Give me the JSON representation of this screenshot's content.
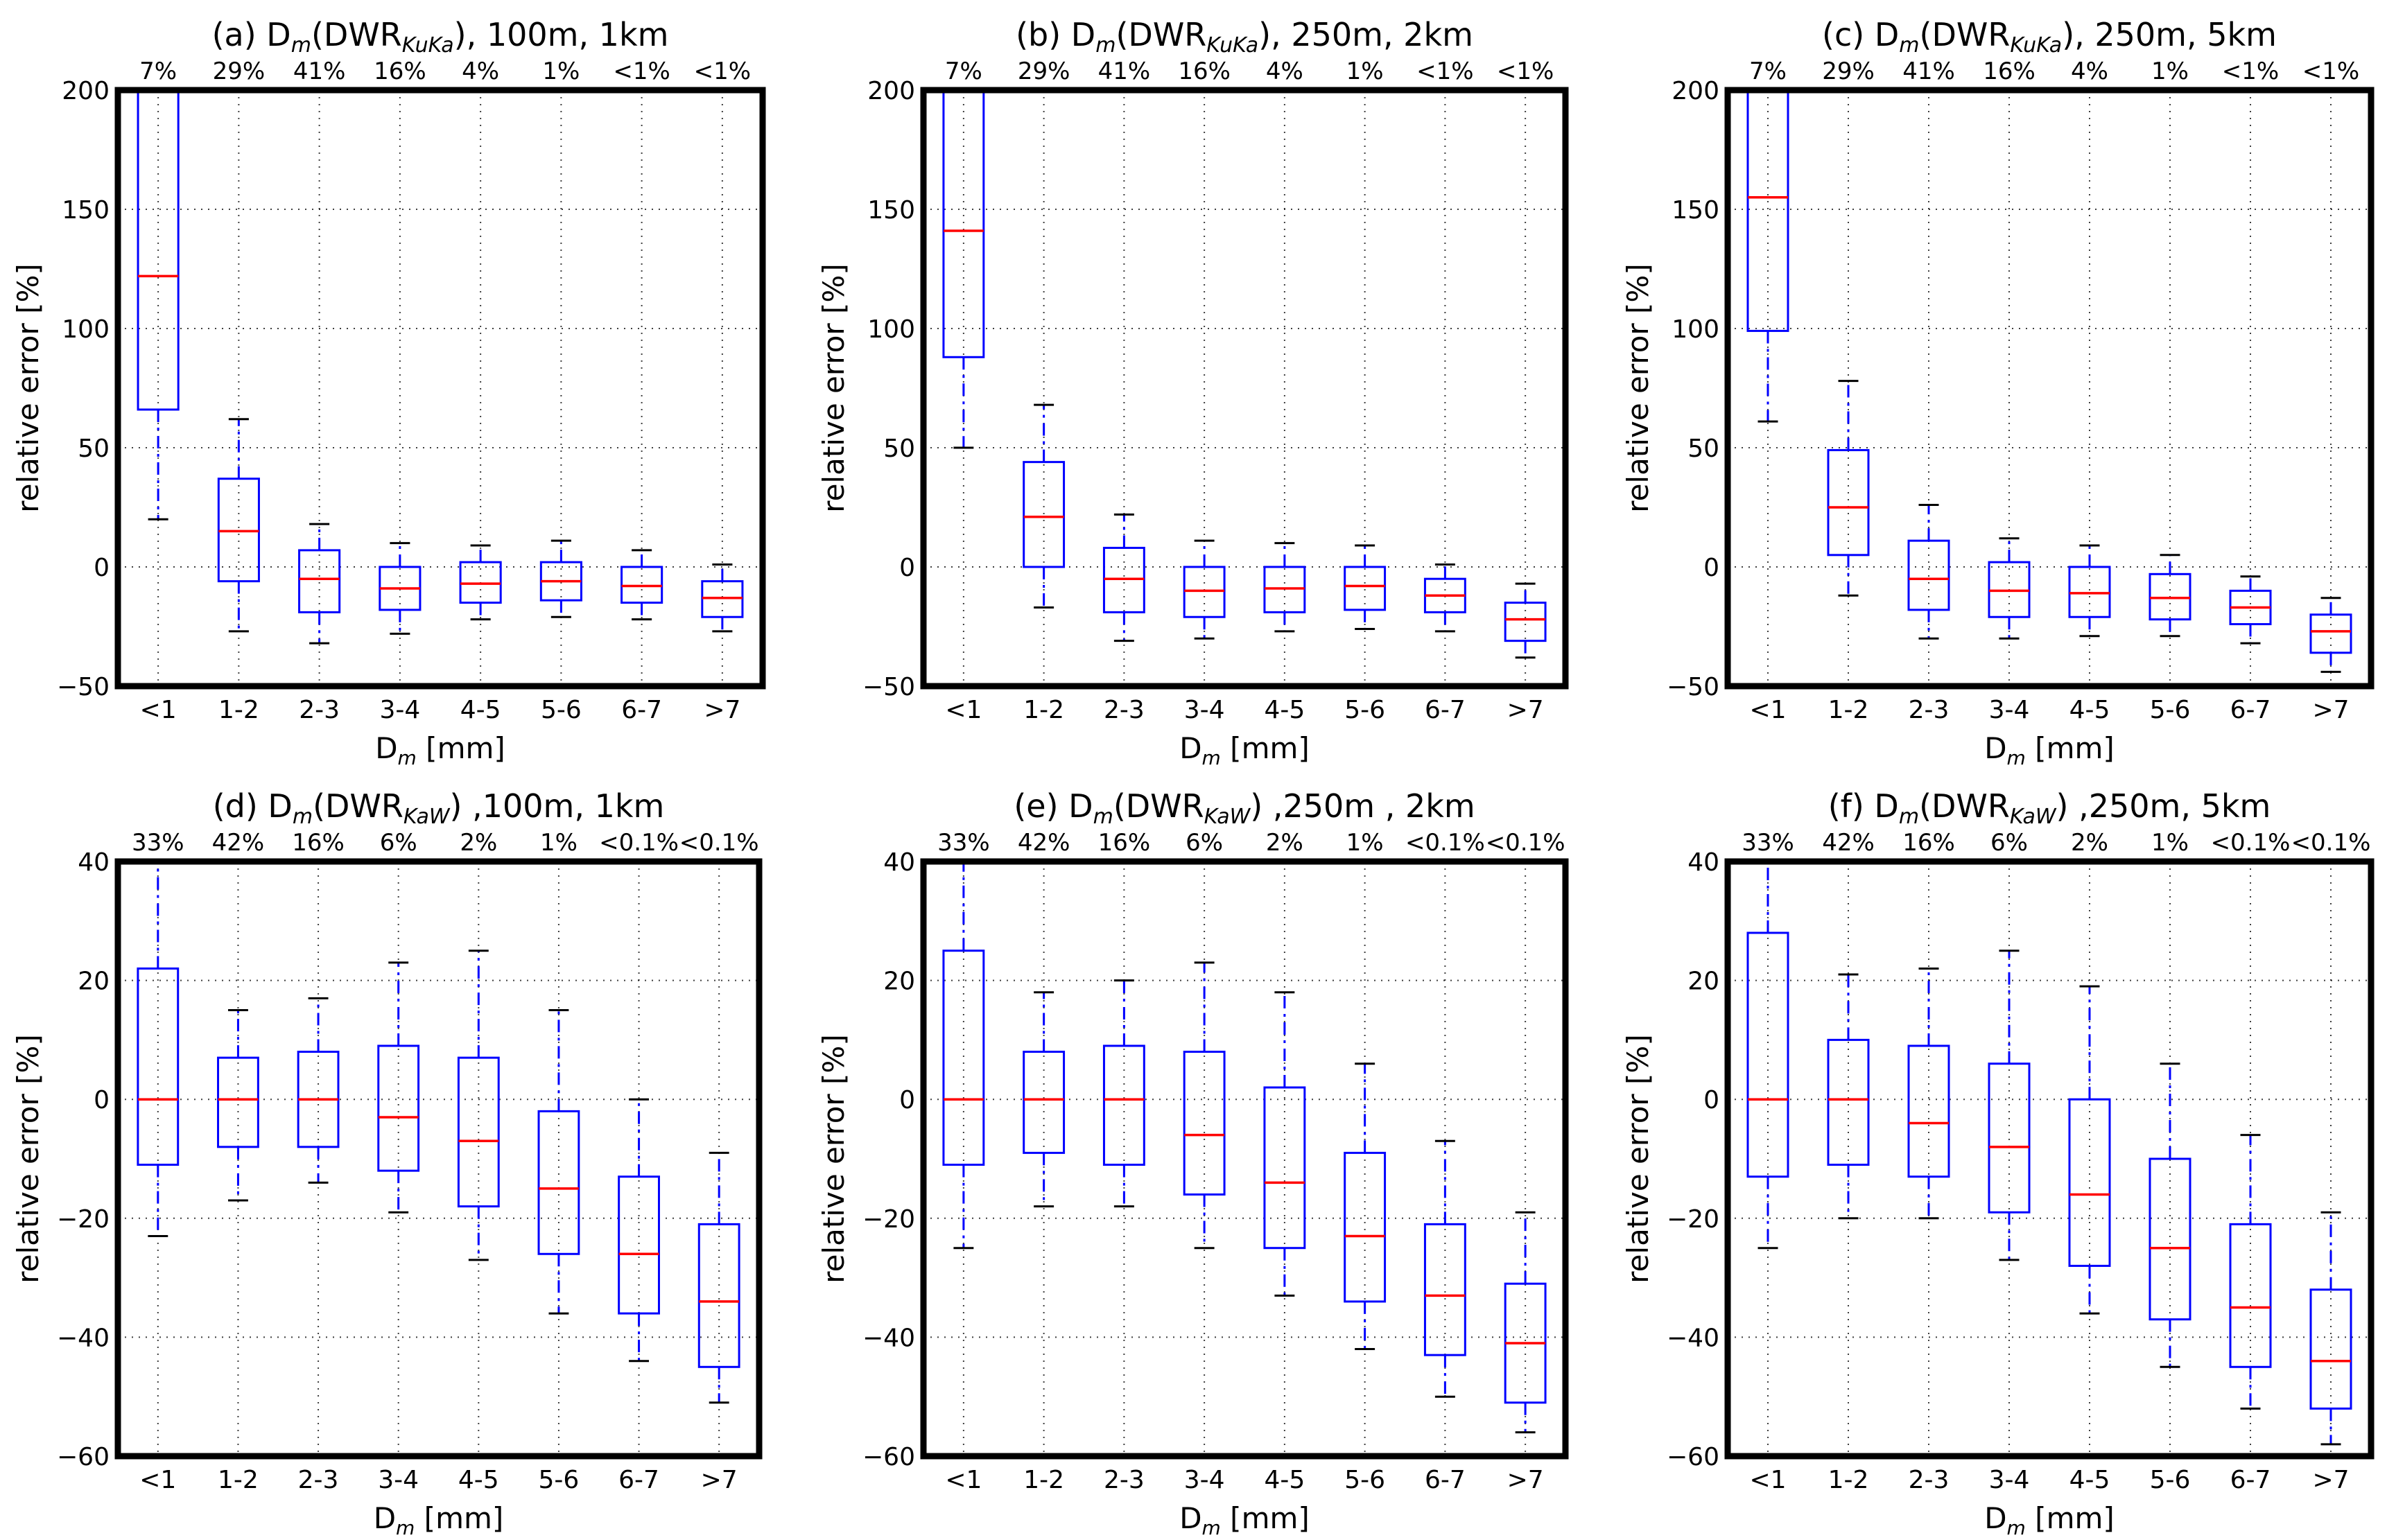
{
  "chart_data": [
    {
      "type": "box",
      "title": "(a) D_m(DWR_KuKa), 100m, 1km",
      "title_main": "(a) D",
      "title_sub_m": "m",
      "title_mid": "(DWR",
      "title_sub": "KuKa",
      "title_tail": "), 100m, 1km",
      "xlabel": "D_m [mm]",
      "xlabel_main": "D",
      "xlabel_sub": "m",
      "xlabel_tail": " [mm]",
      "ylabel": "relative error [%]",
      "ylim": [
        -50,
        200
      ],
      "yticks": [
        "200",
        "150",
        "100",
        "50",
        "0",
        "−50"
      ],
      "ytick_values": [
        200,
        150,
        100,
        50,
        0,
        -50
      ],
      "categories": [
        "<1",
        "1-2",
        "2-3",
        "3-4",
        "4-5",
        "5-6",
        "6-7",
        ">7"
      ],
      "percentages": [
        "7%",
        "29%",
        "41%",
        "16%",
        "4%",
        "1%",
        "<1%",
        "<1%"
      ],
      "boxes": [
        {
          "whislo": 20,
          "q1": 66,
          "med": 122,
          "q3": 200,
          "whishi": 200
        },
        {
          "whislo": -27,
          "q1": -6,
          "med": 15,
          "q3": 37,
          "whishi": 62
        },
        {
          "whislo": -32,
          "q1": -19,
          "med": -5,
          "q3": 7,
          "whishi": 18
        },
        {
          "whislo": -28,
          "q1": -18,
          "med": -9,
          "q3": 0,
          "whishi": 10
        },
        {
          "whislo": -22,
          "q1": -15,
          "med": -7,
          "q3": 2,
          "whishi": 9
        },
        {
          "whislo": -21,
          "q1": -14,
          "med": -6,
          "q3": 2,
          "whishi": 11
        },
        {
          "whislo": -22,
          "q1": -15,
          "med": -8,
          "q3": 0,
          "whishi": 7
        },
        {
          "whislo": -27,
          "q1": -21,
          "med": -13,
          "q3": -6,
          "whishi": 1
        }
      ]
    },
    {
      "type": "box",
      "title": "(b) D_m(DWR_KuKa), 250m, 2km",
      "title_main": "(b) D",
      "title_sub_m": "m",
      "title_mid": "(DWR",
      "title_sub": "KuKa",
      "title_tail": "), 250m, 2km",
      "xlabel": "D_m [mm]",
      "xlabel_main": "D",
      "xlabel_sub": "m",
      "xlabel_tail": " [mm]",
      "ylabel": "relative error [%]",
      "ylim": [
        -50,
        200
      ],
      "yticks": [
        "200",
        "150",
        "100",
        "50",
        "0",
        "−50"
      ],
      "ytick_values": [
        200,
        150,
        100,
        50,
        0,
        -50
      ],
      "categories": [
        "<1",
        "1-2",
        "2-3",
        "3-4",
        "4-5",
        "5-6",
        "6-7",
        ">7"
      ],
      "percentages": [
        "7%",
        "29%",
        "41%",
        "16%",
        "4%",
        "1%",
        "<1%",
        "<1%"
      ],
      "boxes": [
        {
          "whislo": 50,
          "q1": 88,
          "med": 141,
          "q3": 200,
          "whishi": 200
        },
        {
          "whislo": -17,
          "q1": 0,
          "med": 21,
          "q3": 44,
          "whishi": 68
        },
        {
          "whislo": -31,
          "q1": -19,
          "med": -5,
          "q3": 8,
          "whishi": 22
        },
        {
          "whislo": -30,
          "q1": -21,
          "med": -10,
          "q3": 0,
          "whishi": 11
        },
        {
          "whislo": -27,
          "q1": -19,
          "med": -9,
          "q3": 0,
          "whishi": 10
        },
        {
          "whislo": -26,
          "q1": -18,
          "med": -8,
          "q3": 0,
          "whishi": 9
        },
        {
          "whislo": -27,
          "q1": -19,
          "med": -12,
          "q3": -5,
          "whishi": 1
        },
        {
          "whislo": -38,
          "q1": -31,
          "med": -22,
          "q3": -15,
          "whishi": -7
        }
      ]
    },
    {
      "type": "box",
      "title": "(c) D_m(DWR_KuKa), 250m, 5km",
      "title_main": "(c) D",
      "title_sub_m": "m",
      "title_mid": "(DWR",
      "title_sub": "KuKa",
      "title_tail": "), 250m, 5km",
      "xlabel": "D_m [mm]",
      "xlabel_main": "D",
      "xlabel_sub": "m",
      "xlabel_tail": " [mm]",
      "ylabel": "relative error [%]",
      "ylim": [
        -50,
        200
      ],
      "yticks": [
        "200",
        "150",
        "100",
        "50",
        "0",
        "−50"
      ],
      "ytick_values": [
        200,
        150,
        100,
        50,
        0,
        -50
      ],
      "categories": [
        "<1",
        "1-2",
        "2-3",
        "3-4",
        "4-5",
        "5-6",
        "6-7",
        ">7"
      ],
      "percentages": [
        "7%",
        "29%",
        "41%",
        "16%",
        "4%",
        "1%",
        "<1%",
        "<1%"
      ],
      "boxes": [
        {
          "whislo": 61,
          "q1": 99,
          "med": 155,
          "q3": 200,
          "whishi": 200
        },
        {
          "whislo": -12,
          "q1": 5,
          "med": 25,
          "q3": 49,
          "whishi": 78
        },
        {
          "whislo": -30,
          "q1": -18,
          "med": -5,
          "q3": 11,
          "whishi": 26
        },
        {
          "whislo": -30,
          "q1": -21,
          "med": -10,
          "q3": 2,
          "whishi": 12
        },
        {
          "whislo": -29,
          "q1": -21,
          "med": -11,
          "q3": 0,
          "whishi": 9
        },
        {
          "whislo": -29,
          "q1": -22,
          "med": -13,
          "q3": -3,
          "whishi": 5
        },
        {
          "whislo": -32,
          "q1": -24,
          "med": -17,
          "q3": -10,
          "whishi": -4
        },
        {
          "whislo": -44,
          "q1": -36,
          "med": -27,
          "q3": -20,
          "whishi": -13
        }
      ]
    },
    {
      "type": "box",
      "title": "(d) D_m(DWR_KaW) ,100m, 1km",
      "title_main": "(d) D",
      "title_sub_m": "m",
      "title_mid": "(DWR",
      "title_sub": "KaW",
      "title_tail": ") ,100m, 1km",
      "xlabel": "D_m [mm]",
      "xlabel_main": "D",
      "xlabel_sub": "m",
      "xlabel_tail": " [mm]",
      "ylabel": "relative error [%]",
      "ylim": [
        -60,
        40
      ],
      "yticks": [
        "40",
        "20",
        "0",
        "−20",
        "−40",
        "−60"
      ],
      "ytick_values": [
        40,
        20,
        0,
        -20,
        -40,
        -60
      ],
      "categories": [
        "<1",
        "1-2",
        "2-3",
        "3-4",
        "4-5",
        "5-6",
        "6-7",
        ">7"
      ],
      "percentages": [
        "33%",
        "42%",
        "16%",
        "6%",
        "2%",
        "1%",
        "<0.1%",
        "<0.1%"
      ],
      "boxes": [
        {
          "whislo": -23,
          "q1": -11,
          "med": 0,
          "q3": 22,
          "whishi": 40
        },
        {
          "whislo": -17,
          "q1": -8,
          "med": 0,
          "q3": 7,
          "whishi": 15
        },
        {
          "whislo": -14,
          "q1": -8,
          "med": 0,
          "q3": 8,
          "whishi": 17
        },
        {
          "whislo": -19,
          "q1": -12,
          "med": -3,
          "q3": 9,
          "whishi": 23
        },
        {
          "whislo": -27,
          "q1": -18,
          "med": -7,
          "q3": 7,
          "whishi": 25
        },
        {
          "whislo": -36,
          "q1": -26,
          "med": -15,
          "q3": -2,
          "whishi": 15
        },
        {
          "whislo": -44,
          "q1": -36,
          "med": -26,
          "q3": -13,
          "whishi": 0
        },
        {
          "whislo": -51,
          "q1": -45,
          "med": -34,
          "q3": -21,
          "whishi": -9
        }
      ]
    },
    {
      "type": "box",
      "title": "(e) D_m(DWR_KaW) ,250m , 2km",
      "title_main": "(e) D",
      "title_sub_m": "m",
      "title_mid": "(DWR",
      "title_sub": "KaW",
      "title_tail": ") ,250m , 2km",
      "xlabel": "D_m [mm]",
      "xlabel_main": "D",
      "xlabel_sub": "m",
      "xlabel_tail": " [mm]",
      "ylabel": "relative error [%]",
      "ylim": [
        -60,
        40
      ],
      "yticks": [
        "40",
        "20",
        "0",
        "−20",
        "−40",
        "−60"
      ],
      "ytick_values": [
        40,
        20,
        0,
        -20,
        -40,
        -60
      ],
      "categories": [
        "<1",
        "1-2",
        "2-3",
        "3-4",
        "4-5",
        "5-6",
        "6-7",
        ">7"
      ],
      "percentages": [
        "33%",
        "42%",
        "16%",
        "6%",
        "2%",
        "1%",
        "<0.1%",
        "<0.1%"
      ],
      "boxes": [
        {
          "whislo": -25,
          "q1": -11,
          "med": 0,
          "q3": 25,
          "whishi": 40
        },
        {
          "whislo": -18,
          "q1": -9,
          "med": 0,
          "q3": 8,
          "whishi": 18
        },
        {
          "whislo": -18,
          "q1": -11,
          "med": 0,
          "q3": 9,
          "whishi": 20
        },
        {
          "whislo": -25,
          "q1": -16,
          "med": -6,
          "q3": 8,
          "whishi": 23
        },
        {
          "whislo": -33,
          "q1": -25,
          "med": -14,
          "q3": 2,
          "whishi": 18
        },
        {
          "whislo": -42,
          "q1": -34,
          "med": -23,
          "q3": -9,
          "whishi": 6
        },
        {
          "whislo": -50,
          "q1": -43,
          "med": -33,
          "q3": -21,
          "whishi": -7
        },
        {
          "whislo": -56,
          "q1": -51,
          "med": -41,
          "q3": -31,
          "whishi": -19
        }
      ]
    },
    {
      "type": "box",
      "title": "(f) D_m(DWR_KaW) ,250m, 5km",
      "title_main": "(f) D",
      "title_sub_m": "m",
      "title_mid": "(DWR",
      "title_sub": "KaW",
      "title_tail": ") ,250m, 5km",
      "xlabel": "D_m [mm]",
      "xlabel_main": "D",
      "xlabel_sub": "m",
      "xlabel_tail": " [mm]",
      "ylabel": "relative error [%]",
      "ylim": [
        -60,
        40
      ],
      "yticks": [
        "40",
        "20",
        "0",
        "−20",
        "−40",
        "−60"
      ],
      "ytick_values": [
        40,
        20,
        0,
        -20,
        -40,
        -60
      ],
      "categories": [
        "<1",
        "1-2",
        "2-3",
        "3-4",
        "4-5",
        "5-6",
        "6-7",
        ">7"
      ],
      "percentages": [
        "33%",
        "42%",
        "16%",
        "6%",
        "2%",
        "1%",
        "<0.1%",
        "<0.1%"
      ],
      "boxes": [
        {
          "whislo": -25,
          "q1": -13,
          "med": 0,
          "q3": 28,
          "whishi": 40
        },
        {
          "whislo": -20,
          "q1": -11,
          "med": 0,
          "q3": 10,
          "whishi": 21
        },
        {
          "whislo": -20,
          "q1": -13,
          "med": -4,
          "q3": 9,
          "whishi": 22
        },
        {
          "whislo": -27,
          "q1": -19,
          "med": -8,
          "q3": 6,
          "whishi": 25
        },
        {
          "whislo": -36,
          "q1": -28,
          "med": -16,
          "q3": 0,
          "whishi": 19
        },
        {
          "whislo": -45,
          "q1": -37,
          "med": -25,
          "q3": -10,
          "whishi": 6
        },
        {
          "whislo": -52,
          "q1": -45,
          "med": -35,
          "q3": -21,
          "whishi": -6
        },
        {
          "whislo": -58,
          "q1": -52,
          "med": -44,
          "q3": -32,
          "whishi": -19
        }
      ]
    }
  ]
}
